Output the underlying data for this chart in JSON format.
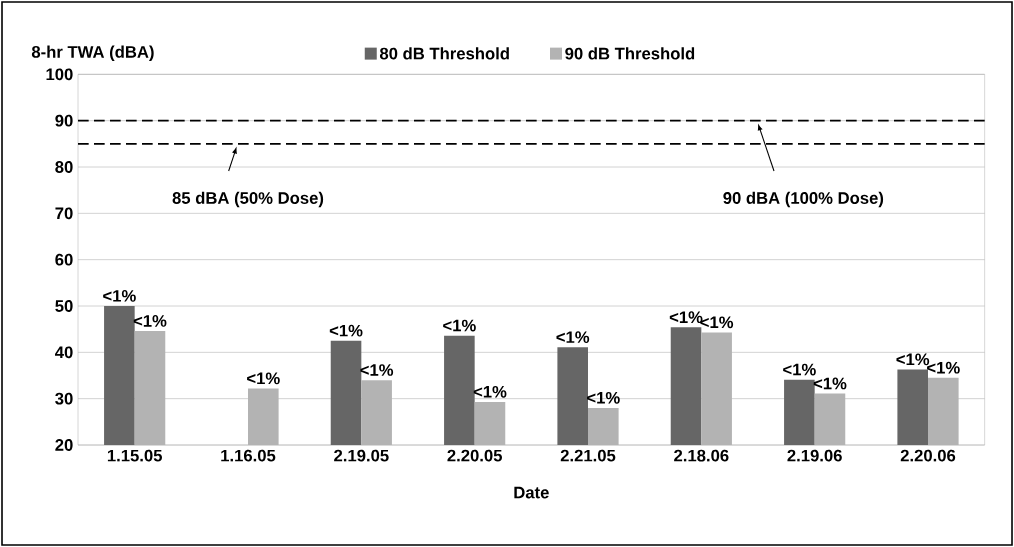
{
  "chart_data": {
    "type": "bar",
    "ylabel": "8-hr TWA (dBA)",
    "xlabel": "Date",
    "categories": [
      "1.15.05",
      "1.16.05",
      "2.19.05",
      "2.20.05",
      "2.21.05",
      "2.18.06",
      "2.19.06",
      "2.20.06"
    ],
    "series": [
      {
        "name": "80 dB Threshold",
        "color": "#666666",
        "values": [
          50,
          null,
          42.5,
          43.6,
          41.1,
          45.4,
          34.1,
          36.3
        ],
        "value_labels": [
          "<1%",
          null,
          "<1%",
          "<1%",
          "<1%",
          "<1%",
          "<1%",
          "<1%"
        ]
      },
      {
        "name": "90 dB Threshold",
        "color": "#b3b3b3",
        "values": [
          44.6,
          32.2,
          34,
          29.3,
          28,
          44.3,
          31.1,
          34.5
        ],
        "value_labels": [
          "<1%",
          "<1%",
          "<1%",
          "<1%",
          "<1%",
          "<1%",
          "<1%",
          "<1%"
        ]
      }
    ],
    "ylim": [
      20,
      100
    ],
    "yticks": [
      20,
      30,
      40,
      50,
      60,
      70,
      80,
      90,
      100
    ],
    "ref_lines": [
      {
        "axis": "y",
        "value": 85,
        "label": "85 dBA (50% Dose)",
        "line_style": "dashed",
        "color": "#000000"
      },
      {
        "axis": "y",
        "value": 90,
        "label": "90 dBA (100% Dose)",
        "line_style": "dashed",
        "color": "#000000"
      }
    ],
    "grid": "y",
    "legend": "top"
  }
}
